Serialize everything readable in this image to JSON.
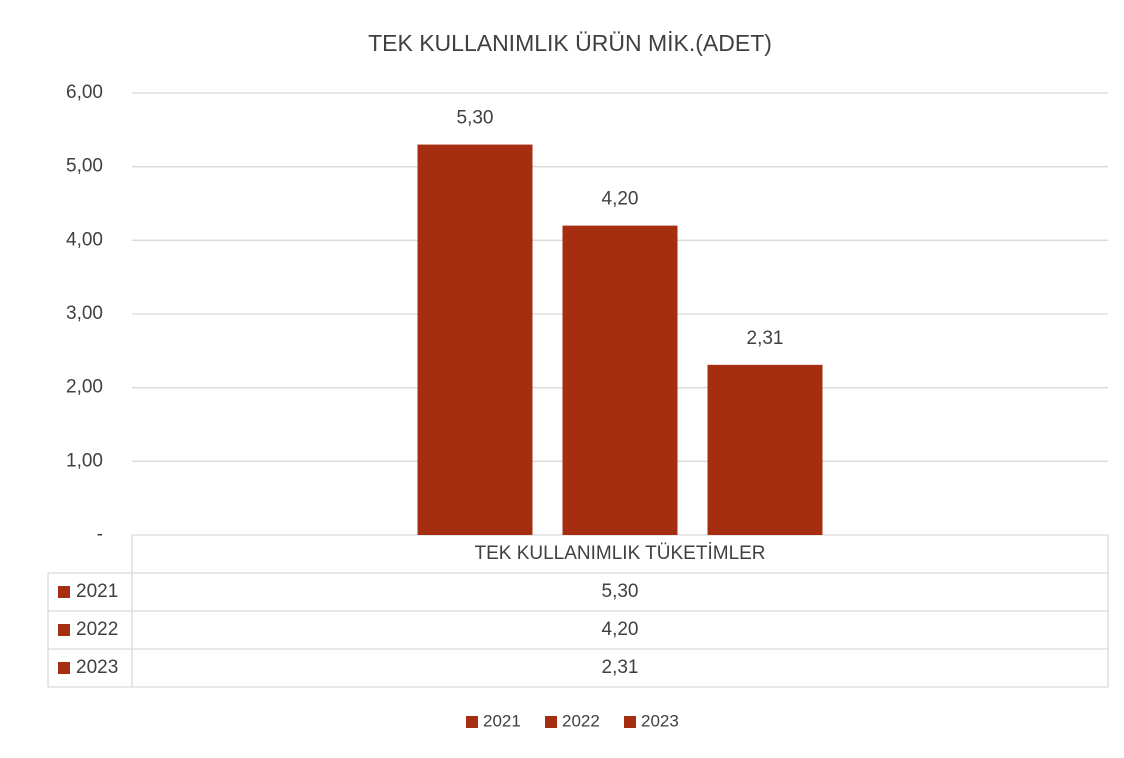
{
  "chart_data": {
    "type": "bar",
    "title": "TEK KULLANIMLIK ÜRÜN MİK.(ADET)",
    "categories": [
      "TEK KULLANIMLIK TÜKETİMLER"
    ],
    "series": [
      {
        "name": "2021",
        "color": "#a52e10",
        "values": [
          5.3
        ],
        "value_labels": [
          "5,30"
        ]
      },
      {
        "name": "2022",
        "color": "#a52e10",
        "values": [
          4.2
        ],
        "value_labels": [
          "4,20"
        ]
      },
      {
        "name": "2023",
        "color": "#a52e10",
        "values": [
          2.31
        ],
        "value_labels": [
          "2,31"
        ]
      }
    ],
    "ylim": [
      0,
      6
    ],
    "yticks": [
      {
        "value": 0,
        "label": "-"
      },
      {
        "value": 1,
        "label": "1,00"
      },
      {
        "value": 2,
        "label": "2,00"
      },
      {
        "value": 3,
        "label": "3,00"
      },
      {
        "value": 4,
        "label": "4,00"
      },
      {
        "value": 5,
        "label": "5,00"
      },
      {
        "value": 6,
        "label": "6,00"
      }
    ],
    "grid": true,
    "legend": "bottom"
  }
}
